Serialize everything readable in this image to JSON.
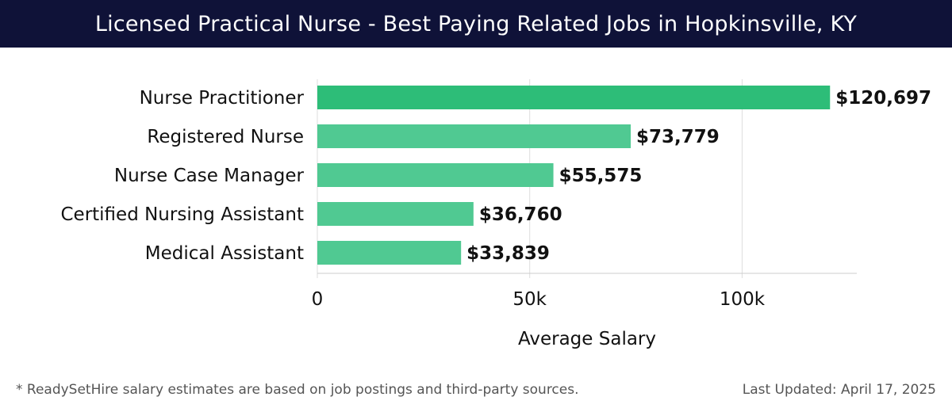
{
  "header": {
    "title": "Licensed Practical Nurse - Best Paying Related Jobs in Hopkinsville, KY"
  },
  "chart_data": {
    "type": "bar",
    "orientation": "horizontal",
    "categories": [
      "Nurse Practitioner",
      "Registered Nurse",
      "Nurse Case Manager",
      "Certified Nursing Assistant",
      "Medical Assistant"
    ],
    "values": [
      120697,
      73779,
      55575,
      36760,
      33839
    ],
    "value_labels": [
      "$120,697",
      "$73,779",
      "$55,575",
      "$36,760",
      "$33,839"
    ],
    "xlabel": "Average Salary",
    "ylabel": "",
    "xlim": [
      0,
      127000
    ],
    "x_ticks": [
      0,
      50000,
      100000
    ],
    "x_tick_labels": [
      "0",
      "50k",
      "100k"
    ],
    "grid": true,
    "colors": {
      "top_bar": "#2dbd78",
      "bar": "#50c992",
      "grid": "#dddddd",
      "axis": "#cccccc",
      "label": "#111111"
    }
  },
  "footer": {
    "note": "* ReadySetHire salary estimates are based on job postings and third-party sources.",
    "updated": "Last Updated: April 17, 2025"
  }
}
